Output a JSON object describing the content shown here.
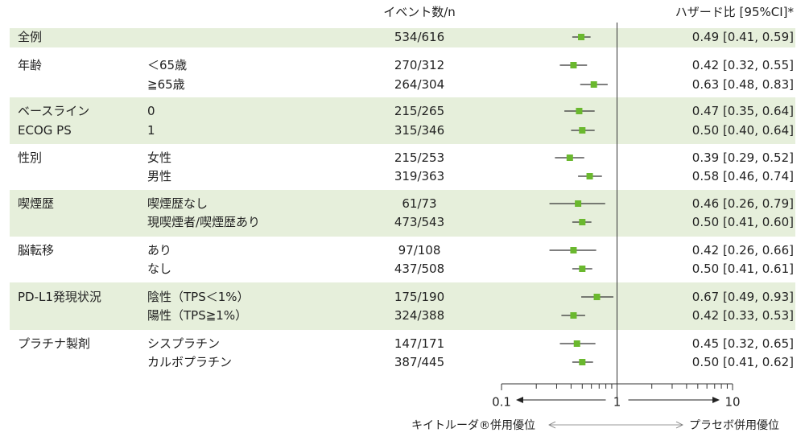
{
  "header": {
    "events": "イベント数/n",
    "hr": "ハザード比 [95%CI]*"
  },
  "rows": [
    {
      "cat": "全例",
      "sub": "",
      "events": "534/616",
      "hr": 0.49,
      "lo": 0.41,
      "hi": 0.59,
      "hr_text": "0.49 [0.41, 0.59]",
      "group": 0
    },
    {
      "cat": "年齢",
      "sub": "＜65歳",
      "events": "270/312",
      "hr": 0.42,
      "lo": 0.32,
      "hi": 0.55,
      "hr_text": "0.42 [0.32, 0.55]",
      "group": 1
    },
    {
      "cat": "",
      "sub": "≧65歳",
      "events": "264/304",
      "hr": 0.63,
      "lo": 0.48,
      "hi": 0.83,
      "hr_text": "0.63 [0.48, 0.83]",
      "group": 1
    },
    {
      "cat": "ベースライン",
      "sub": "0",
      "events": "215/265",
      "hr": 0.47,
      "lo": 0.35,
      "hi": 0.64,
      "hr_text": "0.47 [0.35, 0.64]",
      "group": 2
    },
    {
      "cat": "ECOG PS",
      "sub": "1",
      "events": "315/346",
      "hr": 0.5,
      "lo": 0.4,
      "hi": 0.64,
      "hr_text": "0.50 [0.40, 0.64]",
      "group": 2
    },
    {
      "cat": "性別",
      "sub": "女性",
      "events": "215/253",
      "hr": 0.39,
      "lo": 0.29,
      "hi": 0.52,
      "hr_text": "0.39 [0.29, 0.52]",
      "group": 3
    },
    {
      "cat": "",
      "sub": "男性",
      "events": "319/363",
      "hr": 0.58,
      "lo": 0.46,
      "hi": 0.74,
      "hr_text": "0.58 [0.46, 0.74]",
      "group": 3
    },
    {
      "cat": "喫煙歴",
      "sub": "喫煙歴なし",
      "events": "61/73",
      "hr": 0.46,
      "lo": 0.26,
      "hi": 0.79,
      "hr_text": "0.46 [0.26, 0.79]",
      "group": 4
    },
    {
      "cat": "",
      "sub": "現喫煙者/喫煙歴あり",
      "events": "473/543",
      "hr": 0.5,
      "lo": 0.41,
      "hi": 0.6,
      "hr_text": "0.50 [0.41, 0.60]",
      "group": 4
    },
    {
      "cat": "脳転移",
      "sub": "あり",
      "events": "97/108",
      "hr": 0.42,
      "lo": 0.26,
      "hi": 0.66,
      "hr_text": "0.42 [0.26, 0.66]",
      "group": 5
    },
    {
      "cat": "",
      "sub": "なし",
      "events": "437/508",
      "hr": 0.5,
      "lo": 0.41,
      "hi": 0.61,
      "hr_text": "0.50 [0.41, 0.61]",
      "group": 5
    },
    {
      "cat": "PD-L1発現状況",
      "sub": "陰性（TPS＜1%）",
      "events": "175/190",
      "hr": 0.67,
      "lo": 0.49,
      "hi": 0.93,
      "hr_text": "0.67 [0.49, 0.93]",
      "group": 6
    },
    {
      "cat": "",
      "sub": "陽性（TPS≧1%）",
      "events": "324/388",
      "hr": 0.42,
      "lo": 0.33,
      "hi": 0.53,
      "hr_text": "0.42 [0.33, 0.53]",
      "group": 6
    },
    {
      "cat": "プラチナ製剤",
      "sub": "シスプラチン",
      "events": "147/171",
      "hr": 0.45,
      "lo": 0.32,
      "hi": 0.65,
      "hr_text": "0.45 [0.32, 0.65]",
      "group": 7
    },
    {
      "cat": "",
      "sub": "カルボプラチン",
      "events": "387/445",
      "hr": 0.5,
      "lo": 0.41,
      "hi": 0.62,
      "hr_text": "0.50 [0.41, 0.62]",
      "group": 7
    }
  ],
  "axis": {
    "scale": "log",
    "range": [
      0.1,
      10
    ],
    "ticks": [
      0.1,
      1,
      10
    ],
    "tick_labels": [
      "0.1",
      "1",
      "10"
    ],
    "reference": 1
  },
  "favor": {
    "left": "キイトルーダ®併用優位",
    "right": "プラセボ併用優位"
  },
  "colors": {
    "band": "#e6efdb",
    "marker": "#6ab82e",
    "ci": "#333333"
  },
  "chart_data": {
    "type": "scatter",
    "title": "",
    "xlabel": "",
    "ylabel": "",
    "x_scale": "log",
    "xlim": [
      0.1,
      10
    ],
    "categories": [
      "全例",
      "年齢 ＜65歳",
      "年齢 ≧65歳",
      "ベースライン ECOG PS 0",
      "ベースライン ECOG PS 1",
      "性別 女性",
      "性別 男性",
      "喫煙歴 喫煙歴なし",
      "喫煙歴 現喫煙者/喫煙歴あり",
      "脳転移 あり",
      "脳転移 なし",
      "PD-L1発現状況 陰性（TPS＜1%）",
      "PD-L1発現状況 陽性（TPS≧1%）",
      "プラチナ製剤 シスプラチン",
      "プラチナ製剤 カルボプラチン"
    ],
    "hazard_ratio": [
      0.49,
      0.42,
      0.63,
      0.47,
      0.5,
      0.39,
      0.58,
      0.46,
      0.5,
      0.42,
      0.5,
      0.67,
      0.42,
      0.45,
      0.5
    ],
    "ci_lower": [
      0.41,
      0.32,
      0.48,
      0.35,
      0.4,
      0.29,
      0.46,
      0.26,
      0.41,
      0.26,
      0.41,
      0.49,
      0.33,
      0.32,
      0.41
    ],
    "ci_upper": [
      0.59,
      0.55,
      0.83,
      0.64,
      0.64,
      0.52,
      0.74,
      0.79,
      0.6,
      0.66,
      0.61,
      0.93,
      0.53,
      0.65,
      0.62
    ],
    "events": [
      "534/616",
      "270/312",
      "264/304",
      "215/265",
      "315/346",
      "215/253",
      "319/363",
      "61/73",
      "473/543",
      "97/108",
      "437/508",
      "175/190",
      "324/388",
      "147/171",
      "387/445"
    ]
  }
}
